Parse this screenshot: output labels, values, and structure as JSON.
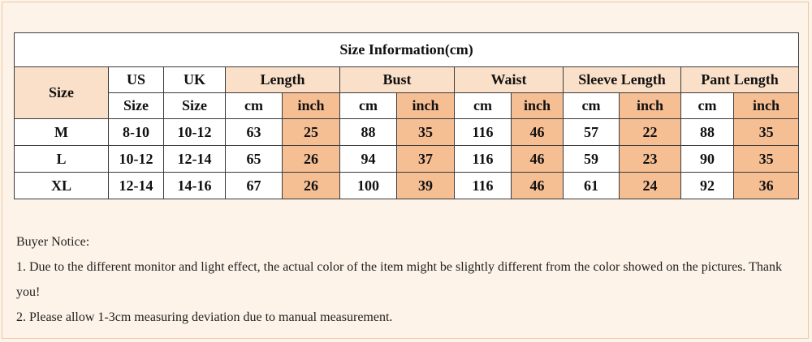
{
  "table": {
    "title": "Size Information(cm)",
    "headers": {
      "size": "Size",
      "us_line1": "US",
      "us_line2": "Size",
      "uk_line1": "UK",
      "uk_line2": "Size",
      "groups": [
        "Length",
        "Bust",
        "Waist",
        "Sleeve Length",
        "Pant Length"
      ],
      "unit_cm": "cm",
      "unit_inch": "inch"
    },
    "rows": [
      {
        "size": "M",
        "us": "8-10",
        "uk": "10-12",
        "values": [
          "63",
          "25",
          "88",
          "35",
          "116",
          "46",
          "57",
          "22",
          "88",
          "35"
        ]
      },
      {
        "size": "L",
        "us": "10-12",
        "uk": "12-14",
        "values": [
          "65",
          "26",
          "94",
          "37",
          "116",
          "46",
          "59",
          "23",
          "90",
          "35"
        ]
      },
      {
        "size": "XL",
        "us": "12-14",
        "uk": "14-16",
        "values": [
          "67",
          "26",
          "100",
          "39",
          "116",
          "46",
          "61",
          "24",
          "92",
          "36"
        ]
      }
    ]
  },
  "notice": {
    "heading": "Buyer Notice:",
    "line1": "1. Due to the different monitor and light effect, the actual color of the item might be slightly different from the color showed on the pictures. Thank you!",
    "line2": "2. Please allow 1-3cm measuring deviation due to manual measurement."
  },
  "colors": {
    "background": "#fdf3e8",
    "header_fill": "#fbe0c9",
    "inch_fill": "#f6be93"
  }
}
